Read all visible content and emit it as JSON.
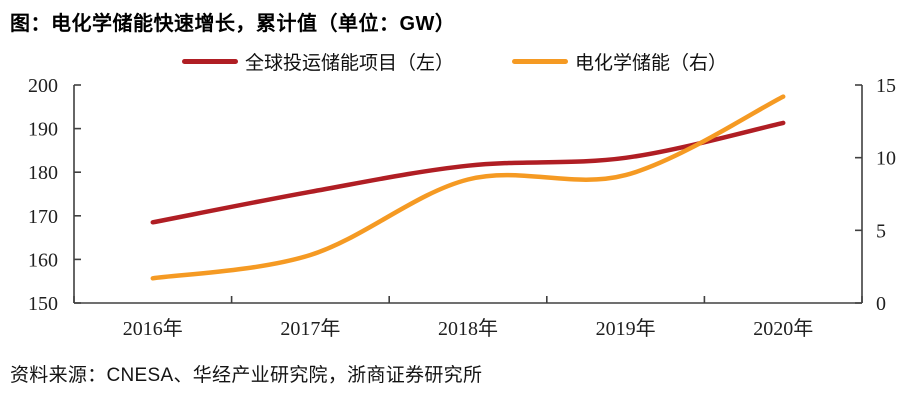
{
  "title": "图：电化学储能快速增长，累计值（单位：GW）",
  "legend": {
    "items": [
      {
        "label": "全球投运储能项目（左）",
        "color": "#b01e24"
      },
      {
        "label": "电化学储能（右）",
        "color": "#f59a23"
      }
    ]
  },
  "source": "资料来源：CNESA、华经产业研究院，浙商证券研究所",
  "colors": {
    "axis": "#404040",
    "tick_label": "#1f1f1f",
    "series_left": "#b01e24",
    "series_right": "#f59a23"
  },
  "chart_data": {
    "type": "line",
    "title": "图：电化学储能快速增长，累计值（单位：GW）",
    "categories": [
      "2016年",
      "2017年",
      "2018年",
      "2019年",
      "2020年"
    ],
    "series": [
      {
        "name": "全球投运储能项目（左）",
        "axis": "left",
        "color": "#b01e24",
        "values": [
          168.5,
          175.5,
          181.5,
          183.3,
          191.3
        ]
      },
      {
        "name": "电化学储能（右）",
        "axis": "right",
        "color": "#f59a23",
        "values": [
          1.7,
          3.3,
          8.5,
          8.8,
          14.2
        ]
      }
    ],
    "left_axis": {
      "min": 150,
      "max": 200,
      "ticks": [
        150,
        160,
        170,
        180,
        190,
        200
      ]
    },
    "right_axis": {
      "min": 0,
      "max": 15,
      "ticks": [
        0,
        5,
        10,
        15
      ]
    },
    "grid": false,
    "smoothed": true,
    "legend_position": "top-center"
  }
}
